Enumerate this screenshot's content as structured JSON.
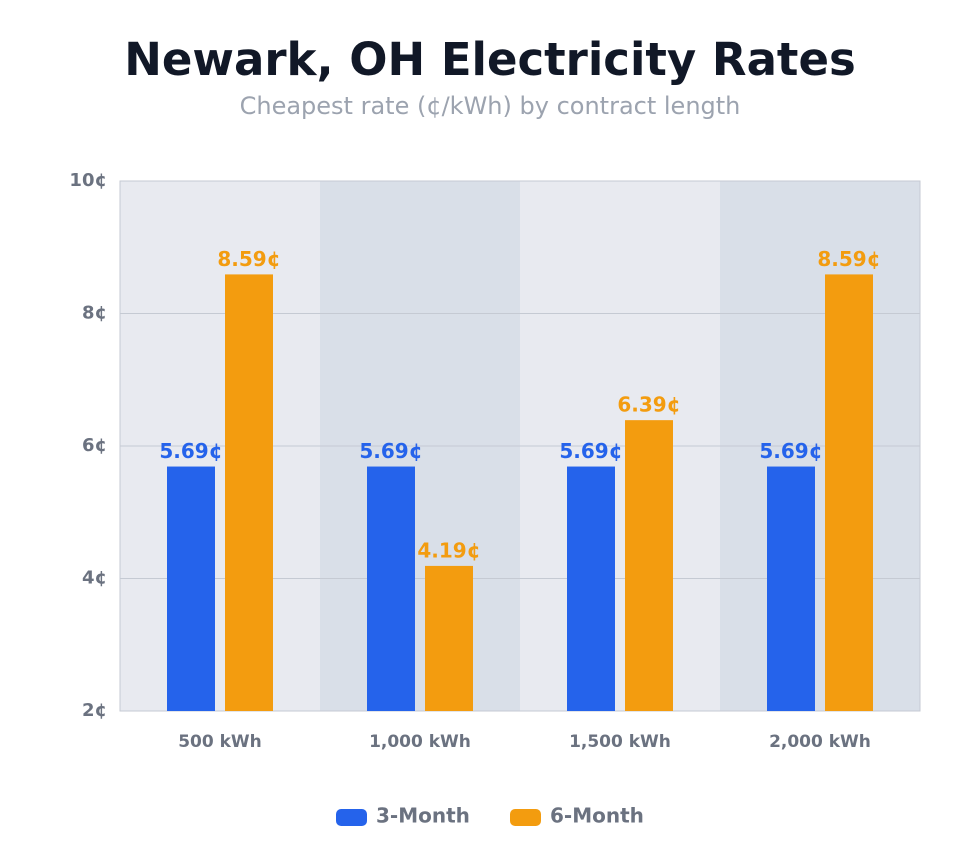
{
  "chart_data": {
    "type": "bar",
    "title": "Newark, OH Electricity Rates",
    "subtitle": "Cheapest rate (¢/kWh) by contract length",
    "categories": [
      "500 kWh",
      "1,000 kWh",
      "1,500 kWh",
      "2,000 kWh"
    ],
    "series": [
      {
        "name": "3-Month",
        "color": "#2563eb",
        "values": [
          5.69,
          5.69,
          5.69,
          5.69
        ],
        "value_labels": [
          "5.69¢",
          "5.69¢",
          "5.69¢",
          "5.69¢"
        ]
      },
      {
        "name": "6-Month",
        "color": "#f39c0f",
        "values": [
          8.59,
          4.19,
          6.39,
          8.59
        ],
        "value_labels": [
          "8.59¢",
          "4.19¢",
          "6.39¢",
          "8.59¢"
        ]
      }
    ],
    "ylim": [
      2,
      10
    ],
    "yticks": [
      {
        "value": 2,
        "label": "2¢"
      },
      {
        "value": 4,
        "label": "4¢"
      },
      {
        "value": 6,
        "label": "6¢"
      },
      {
        "value": 8,
        "label": "8¢"
      },
      {
        "value": 10,
        "label": "10¢"
      }
    ],
    "grid": true,
    "legend": "bottom"
  }
}
